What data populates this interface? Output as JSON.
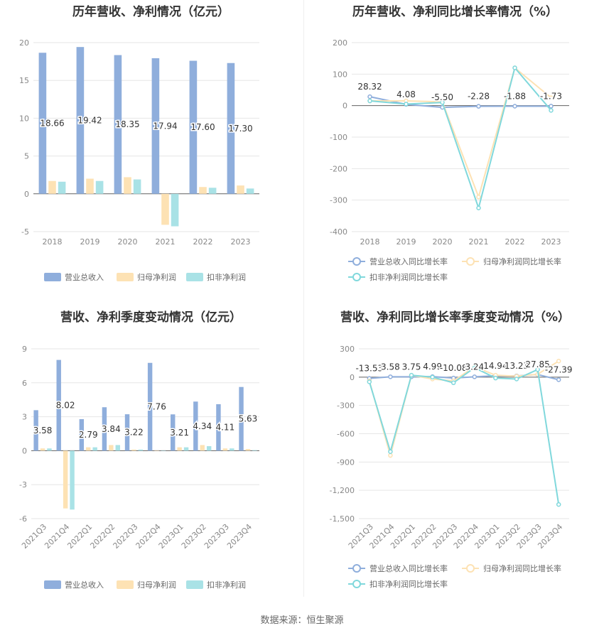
{
  "footer": "数据来源：恒生聚源",
  "colors": {
    "revenue": "#8faedc",
    "netprofit": "#fde2b4",
    "deducted": "#a9e2e6",
    "line_rev": "#8faedc",
    "line_np": "#fde2b4",
    "line_ded": "#80d8dc"
  },
  "chart_data": [
    {
      "id": "annual-bar",
      "type": "bar",
      "title": "历年营收、净利情况（亿元）",
      "categories": [
        "2018",
        "2019",
        "2020",
        "2021",
        "2022",
        "2023"
      ],
      "ylim": [
        -5,
        20
      ],
      "yticks": [
        -5,
        0,
        5,
        10,
        15,
        20
      ],
      "legend_position": "bottom",
      "series": [
        {
          "name": "营业总收入",
          "values": [
            18.66,
            19.42,
            18.35,
            17.94,
            17.6,
            17.3
          ],
          "labels": [
            "18.66",
            "19.42",
            "18.35",
            "17.94",
            "17.60",
            "17.30"
          ]
        },
        {
          "name": "归母净利润",
          "values": [
            1.7,
            2.0,
            2.2,
            -4.1,
            0.9,
            1.1
          ]
        },
        {
          "name": "扣非净利润",
          "values": [
            1.6,
            1.7,
            1.9,
            -4.3,
            0.8,
            0.7
          ]
        }
      ]
    },
    {
      "id": "annual-line",
      "type": "line",
      "title": "历年营收、净利同比增长率情况（%）",
      "categories": [
        "2018",
        "2019",
        "2020",
        "2021",
        "2022",
        "2023"
      ],
      "ylim": [
        -400,
        200
      ],
      "yticks": [
        -400,
        -300,
        -200,
        -100,
        0,
        100,
        200
      ],
      "legend_position": "bottom",
      "series": [
        {
          "name": "营业总收入同比增长率",
          "values": [
            28.32,
            4.08,
            -5.5,
            -2.28,
            -1.88,
            -1.73
          ],
          "labels": [
            "28.32",
            "4.08",
            "-5.50",
            "-2.28",
            "-1.88",
            "-1.73"
          ]
        },
        {
          "name": "归母净利润同比增长率",
          "values": [
            15,
            15,
            12,
            -290,
            120,
            25
          ]
        },
        {
          "name": "扣非净利润同比增长率",
          "values": [
            15,
            5,
            10,
            -325,
            120,
            -15
          ]
        }
      ]
    },
    {
      "id": "quarter-bar",
      "type": "bar",
      "title": "营收、净利季度变动情况（亿元）",
      "categories": [
        "2021Q3",
        "2021Q4",
        "2022Q1",
        "2022Q2",
        "2022Q3",
        "2022Q4",
        "2023Q1",
        "2023Q2",
        "2023Q3",
        "2023Q4"
      ],
      "ylim": [
        -6,
        9
      ],
      "yticks": [
        -6,
        -3,
        0,
        3,
        6,
        9
      ],
      "legend_position": "bottom",
      "series": [
        {
          "name": "营业总收入",
          "values": [
            3.58,
            8.02,
            2.79,
            3.84,
            3.22,
            7.76,
            3.21,
            4.34,
            4.11,
            5.63
          ],
          "labels": [
            "3.58",
            "8.02",
            "2.79",
            "3.84",
            "3.22",
            "7.76",
            "3.21",
            "4.34",
            "4.11",
            "5.63"
          ]
        },
        {
          "name": "归母净利润",
          "values": [
            0.2,
            -5.1,
            0.3,
            0.5,
            0.1,
            0.0,
            0.3,
            0.5,
            0.2,
            0.15
          ]
        },
        {
          "name": "扣非净利润",
          "values": [
            0.2,
            -5.2,
            0.3,
            0.5,
            0.1,
            0.0,
            0.3,
            0.4,
            0.2,
            0.05
          ]
        }
      ]
    },
    {
      "id": "quarter-line",
      "type": "line",
      "title": "营收、净利同比增长率季度变动情况（%）",
      "categories": [
        "2021Q3",
        "2021Q4",
        "2022Q1",
        "2022Q2",
        "2022Q3",
        "2022Q4",
        "2023Q1",
        "2023Q2",
        "2023Q3",
        "2023Q4"
      ],
      "ylim": [
        -1500,
        300
      ],
      "yticks": [
        -1500,
        -1200,
        -900,
        -600,
        -300,
        0,
        300
      ],
      "ytick_labels": [
        "-1,500",
        "-1,200",
        "-900",
        "-600",
        "-300",
        "0",
        "300"
      ],
      "legend_position": "bottom",
      "series": [
        {
          "name": "营业总收入同比增长率",
          "values": [
            -13.53,
            3.58,
            3.75,
            4.99,
            -10.08,
            3.24,
            14.94,
            13.23,
            27.85,
            -27.39
          ],
          "labels": [
            "-13.53",
            "3.58",
            "3.75",
            "4.99",
            "-10.08",
            "3.24",
            "14.94",
            "13.23",
            "27.85",
            "-27.39"
          ]
        },
        {
          "name": "归母净利润同比增长率",
          "values": [
            -40,
            -830,
            20,
            -20,
            -40,
            110,
            20,
            10,
            30,
            170
          ]
        },
        {
          "name": "扣非净利润同比增长率",
          "values": [
            -50,
            -790,
            20,
            0,
            -60,
            100,
            -10,
            -20,
            80,
            -1350
          ]
        }
      ]
    }
  ]
}
